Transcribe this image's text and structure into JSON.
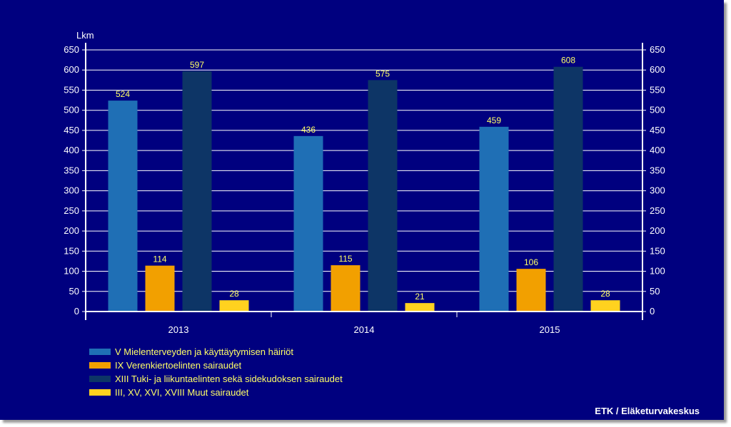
{
  "chart_data": {
    "type": "bar",
    "ylabel": "Lkm",
    "ylim": [
      0,
      650
    ],
    "ytick_step": 50,
    "yticks": [
      "0",
      "50",
      "100",
      "150",
      "200",
      "250",
      "300",
      "350",
      "400",
      "450",
      "500",
      "550",
      "600",
      "650"
    ],
    "grid": true,
    "categories": [
      "2013",
      "2014",
      "2015"
    ],
    "series": [
      {
        "name": "V Mielenterveyden ja käyttäytymisen häiriöt",
        "color": "#1f6fb5",
        "values": [
          524,
          436,
          459
        ]
      },
      {
        "name": "IX Verenkiertoelinten sairaudet",
        "color": "#f2a000",
        "values": [
          114,
          115,
          106
        ]
      },
      {
        "name": "XIII Tuki- ja liikuntaelinten sekä sidekudoksen sairaudet",
        "color": "#0d3566",
        "values": [
          597,
          575,
          608
        ]
      },
      {
        "name": "III, XV, XVI, XVIII Muut sairaudet",
        "color": "#ffd21f",
        "values": [
          28,
          21,
          28
        ]
      }
    ],
    "legend_position": "bottom-left",
    "source": "ETK / Eläketurvakeskus"
  }
}
